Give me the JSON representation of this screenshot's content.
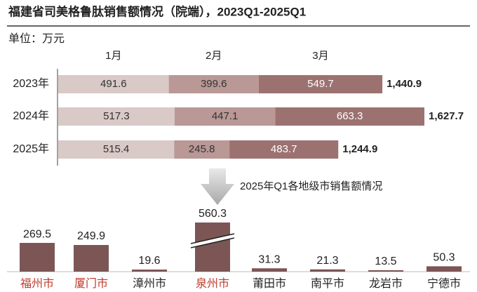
{
  "chart_data": [
    {
      "type": "stacked-barh",
      "title": "福建省司美格鲁肽销售额情况（院端），2023Q1-2025Q1",
      "unit": "单位：万元",
      "categories": [
        "2023年",
        "2024年",
        "2025年"
      ],
      "series": [
        {
          "name": "1月",
          "color": "#d9c9c7",
          "values": [
            491.6,
            517.3,
            515.4
          ]
        },
        {
          "name": "2月",
          "color": "#b99896",
          "values": [
            399.6,
            447.1,
            245.8
          ]
        },
        {
          "name": "3月",
          "color": "#9b7270",
          "values": [
            549.7,
            663.3,
            483.7
          ]
        }
      ],
      "totals": [
        1440.9,
        1627.7,
        1244.9
      ],
      "totals_labels": [
        "1,440.9",
        "1,627.7",
        "1,244.9"
      ]
    },
    {
      "type": "bar",
      "title": "2025年Q1各地级市销售额情况",
      "categories": [
        "福州市",
        "厦门市",
        "漳州市",
        "泉州市",
        "莆田市",
        "南平市",
        "龙岩市",
        "宁德市"
      ],
      "values": [
        269.5,
        249.9,
        19.6,
        560.3,
        31.3,
        21.3,
        13.5,
        50.3
      ],
      "color": "#7b5655",
      "highlight": [
        0,
        1,
        3
      ],
      "highlight_color": "#c0392b",
      "axis_break": true
    }
  ]
}
